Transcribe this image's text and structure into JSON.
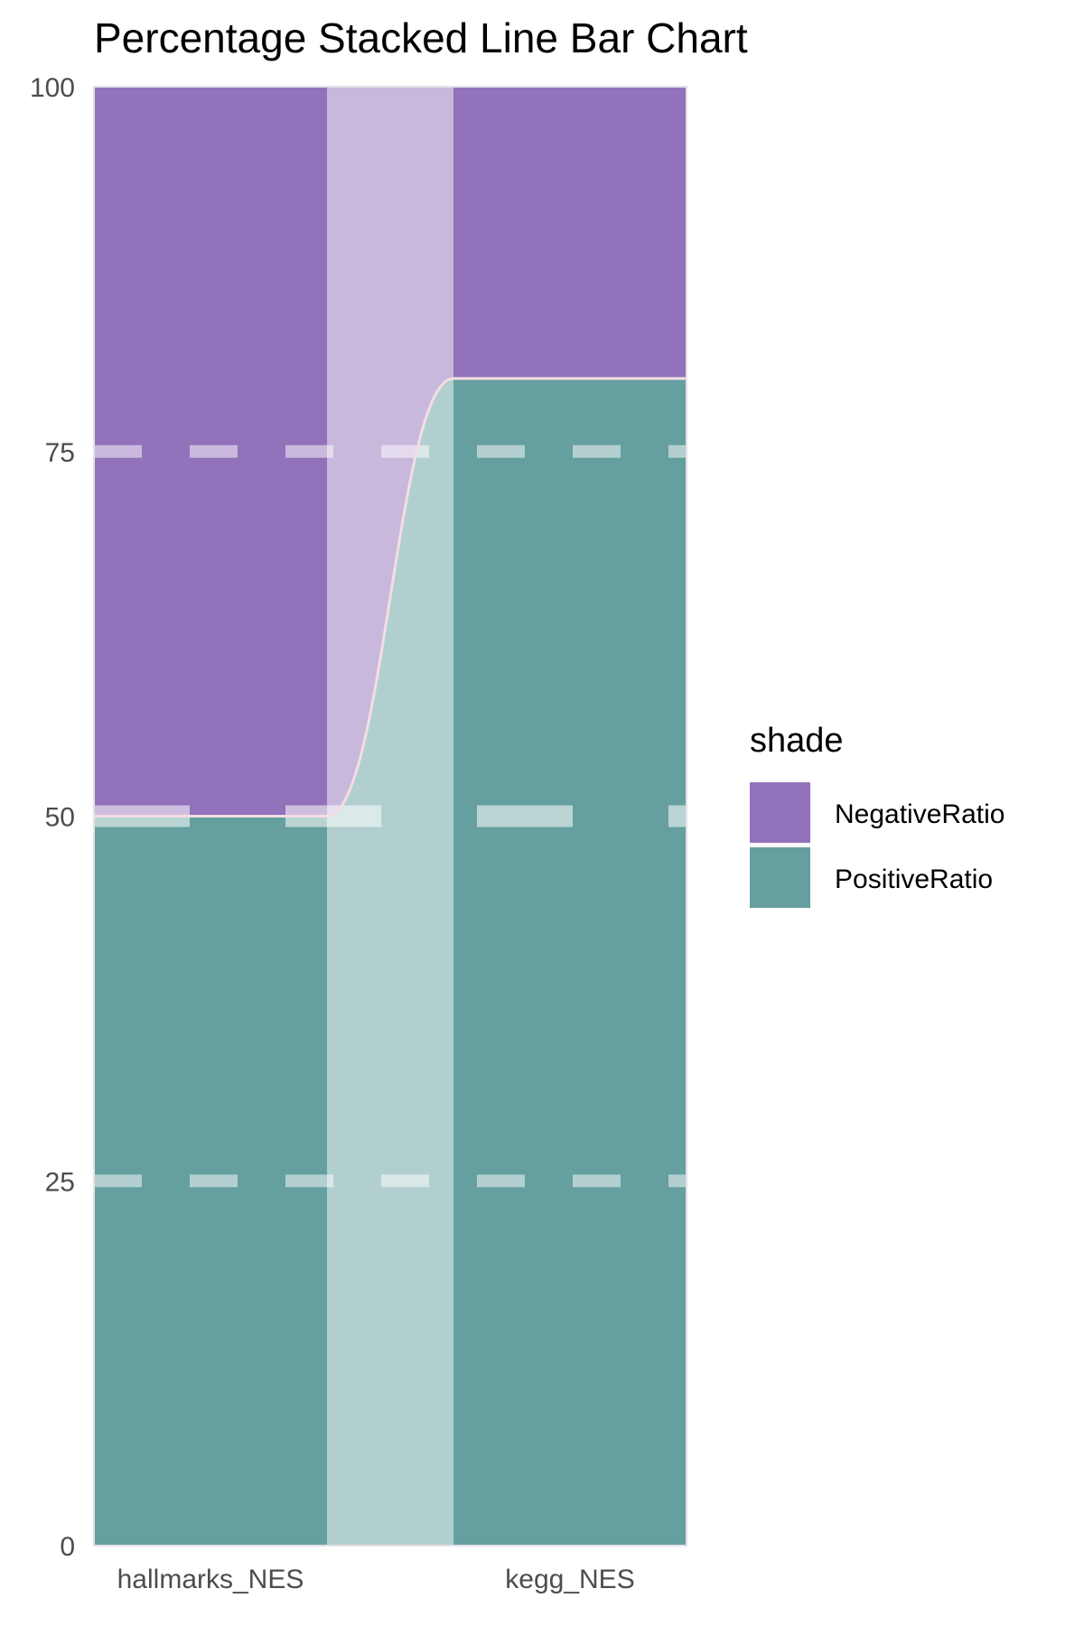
{
  "chart_data": {
    "type": "bar",
    "title": "Percentage Stacked Line Bar Chart",
    "categories": [
      "hallmarks_NES",
      "kegg_NES"
    ],
    "stacked": true,
    "series": [
      {
        "name": "PositiveRatio",
        "values": [
          50,
          80
        ],
        "color": "#669f9f"
      },
      {
        "name": "NegativeRatio",
        "values": [
          50,
          20
        ],
        "color": "#9272ba"
      }
    ],
    "ylim": [
      0,
      100
    ],
    "yticks": [
      "0",
      "25",
      "50",
      "75",
      "100"
    ],
    "grid": "dashed horizontal at 25, 50, 75",
    "connector": "smooth line joining cumulative boundary between bars",
    "legend": {
      "title": "shade",
      "position": "right"
    }
  }
}
